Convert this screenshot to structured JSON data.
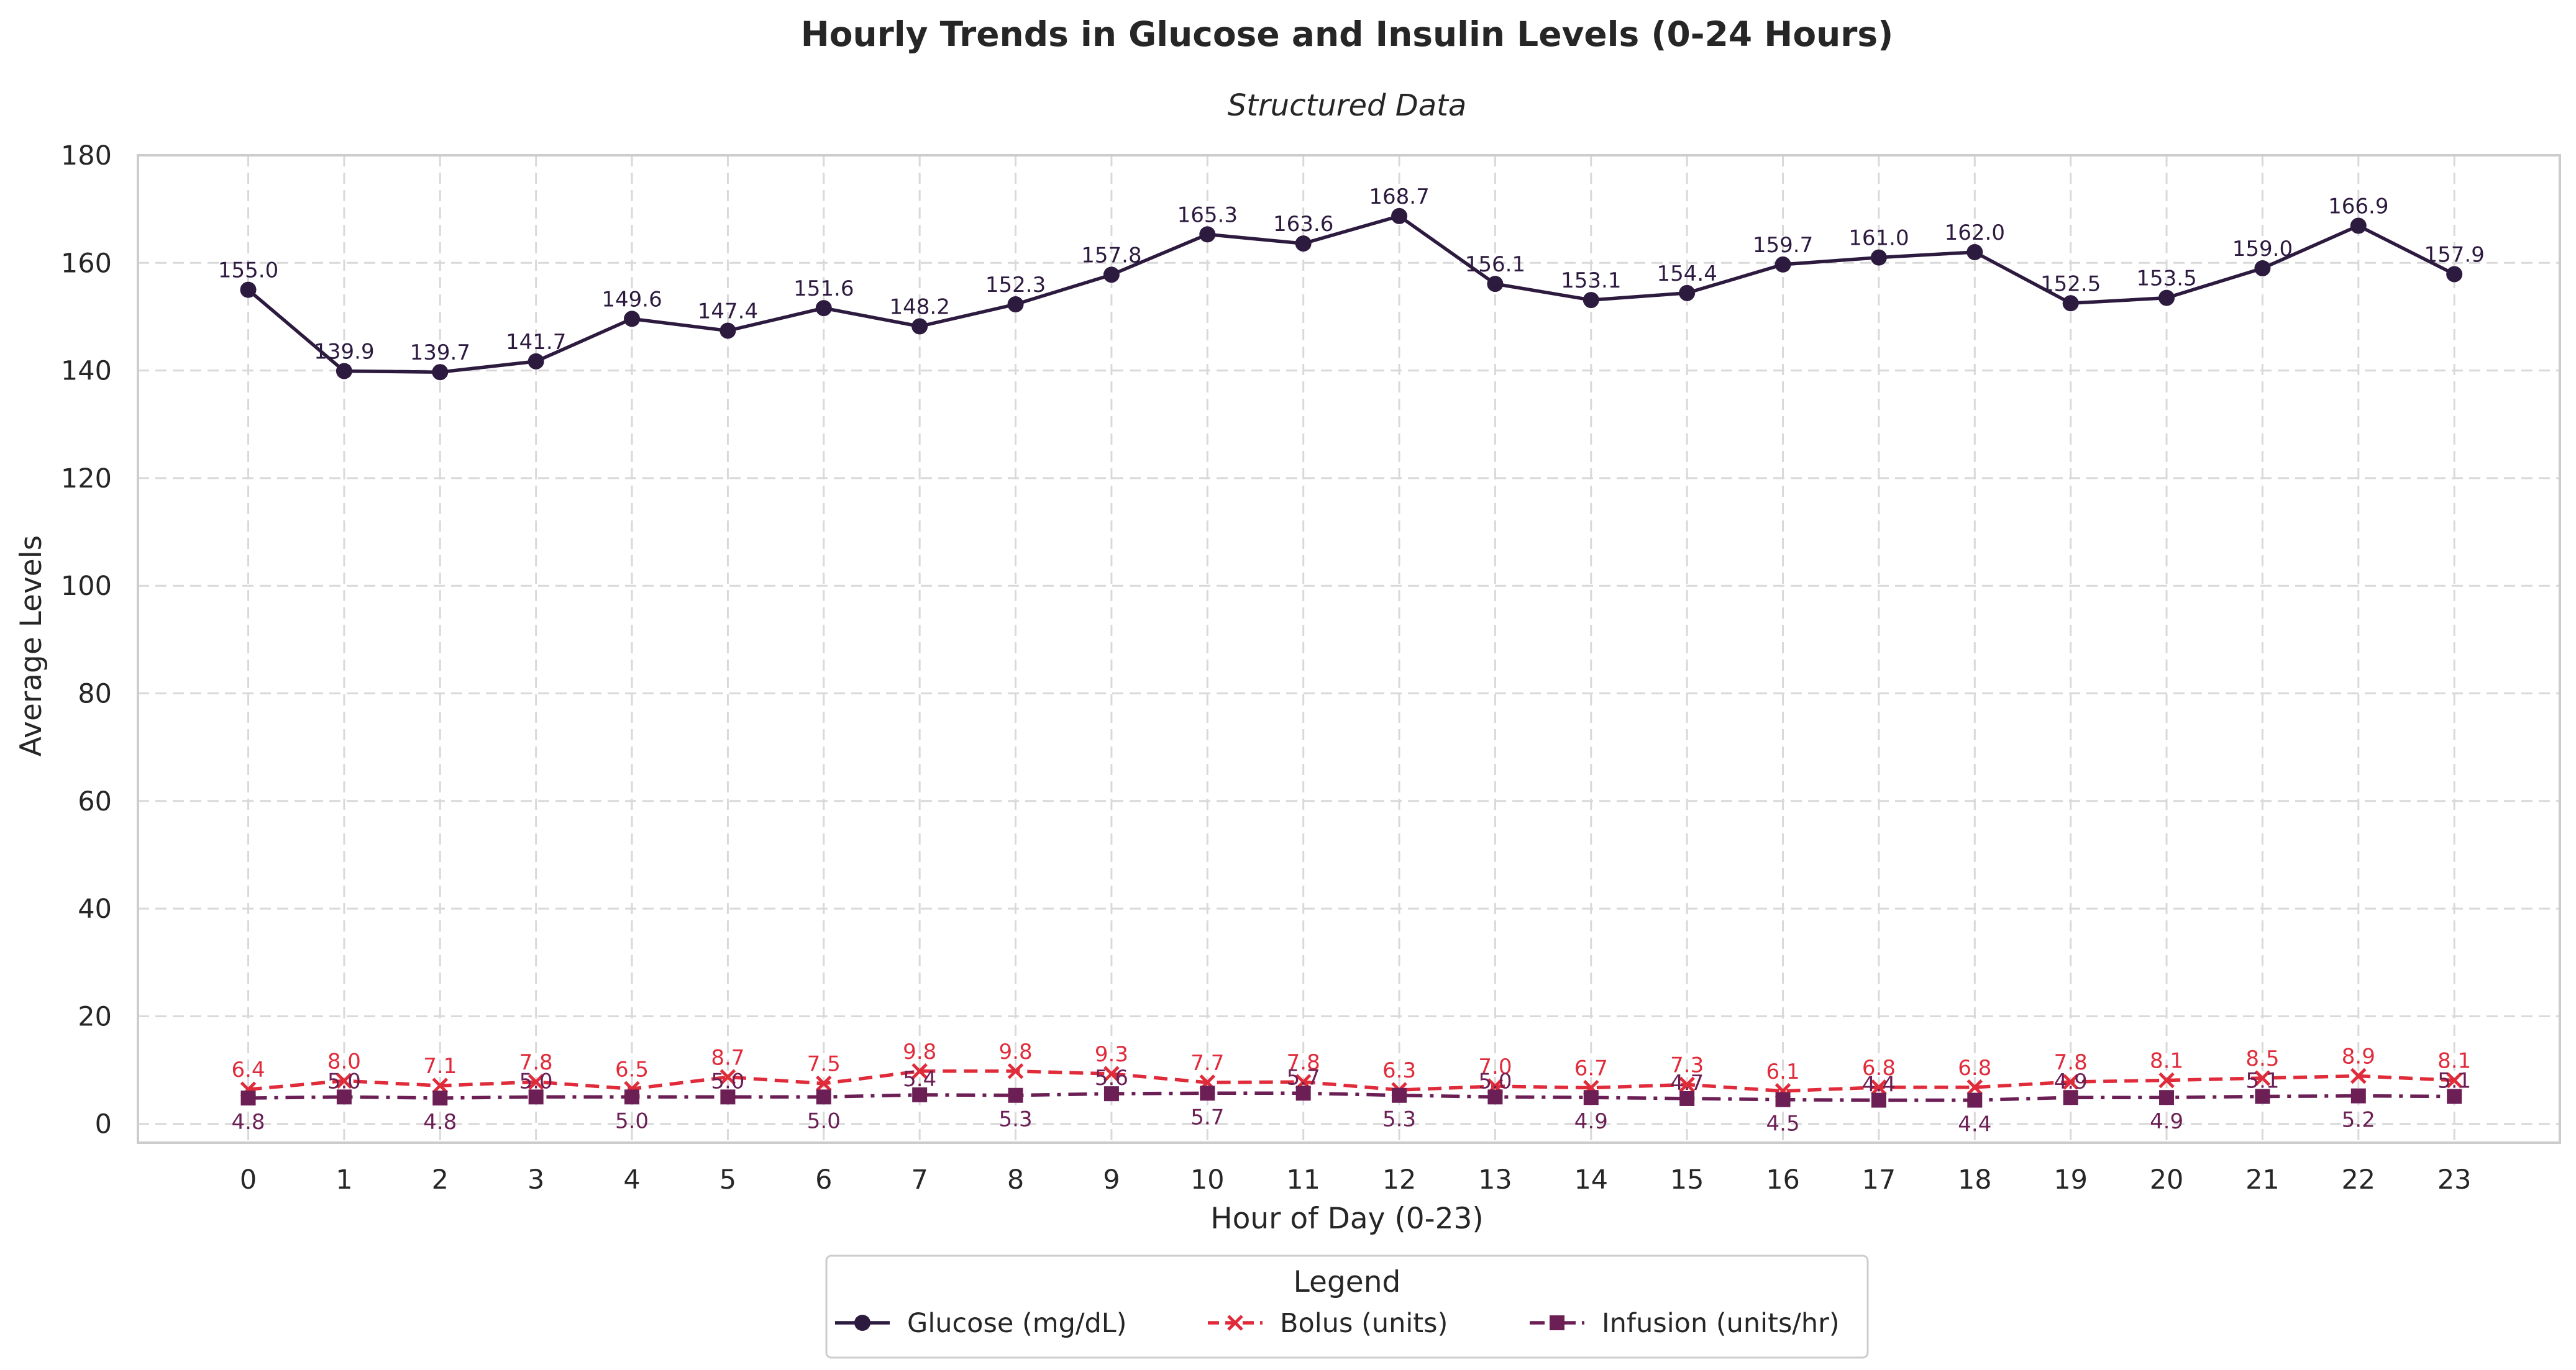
{
  "chart_data": {
    "type": "line",
    "title": "Hourly Trends in Glucose and Insulin Levels (0-24 Hours)",
    "subtitle": "Structured Data",
    "xlabel": "Hour of Day (0-23)",
    "ylabel": "Average Levels",
    "x": [
      0,
      1,
      2,
      3,
      4,
      5,
      6,
      7,
      8,
      9,
      10,
      11,
      12,
      13,
      14,
      15,
      16,
      17,
      18,
      19,
      20,
      21,
      22,
      23
    ],
    "x_tick_labels": [
      "0",
      "1",
      "2",
      "3",
      "4",
      "5",
      "6",
      "7",
      "8",
      "9",
      "10",
      "11",
      "12",
      "13",
      "14",
      "15",
      "16",
      "17",
      "18",
      "19",
      "20",
      "21",
      "22",
      "23"
    ],
    "ylim": [
      0,
      180
    ],
    "y_ticks": [
      0,
      20,
      40,
      60,
      80,
      100,
      120,
      140,
      160,
      180
    ],
    "y_tick_labels": [
      "0",
      "20",
      "40",
      "60",
      "80",
      "100",
      "120",
      "140",
      "160",
      "180"
    ],
    "grid": true,
    "legend": {
      "title": "Legend",
      "placement": "bottom-center"
    },
    "series": [
      {
        "name": "Glucose (mg/dL)",
        "color": "#2d1a3f",
        "marker": "circle",
        "line_style": "solid",
        "label_position": "above",
        "values": [
          155.0,
          139.9,
          139.7,
          141.7,
          149.6,
          147.4,
          151.6,
          148.2,
          152.3,
          157.8,
          165.3,
          163.6,
          168.7,
          156.1,
          153.1,
          154.4,
          159.7,
          161.0,
          162.0,
          152.5,
          153.5,
          159.0,
          166.9,
          157.9
        ],
        "value_labels": [
          "155.0",
          "139.9",
          "139.7",
          "141.7",
          "149.6",
          "147.4",
          "151.6",
          "148.2",
          "152.3",
          "157.8",
          "165.3",
          "163.6",
          "168.7",
          "156.1",
          "153.1",
          "154.4",
          "159.7",
          "161.0",
          "162.0",
          "152.5",
          "153.5",
          "159.0",
          "166.9",
          "157.9"
        ]
      },
      {
        "name": "Bolus (units)",
        "color": "#e02b3a",
        "marker": "x",
        "line_style": "dashed",
        "label_position": "above",
        "values": [
          6.4,
          8.0,
          7.1,
          7.8,
          6.5,
          8.7,
          7.5,
          9.8,
          9.8,
          9.3,
          7.7,
          7.8,
          6.3,
          7.0,
          6.7,
          7.3,
          6.1,
          6.8,
          6.8,
          7.8,
          8.1,
          8.5,
          8.9,
          8.1
        ],
        "value_labels": [
          "6.4",
          "8.0",
          "7.1",
          "7.8",
          "6.5",
          "8.7",
          "7.5",
          "9.8",
          "9.8",
          "9.3",
          "7.7",
          "7.8",
          "6.3",
          "7.0",
          "6.7",
          "7.3",
          "6.1",
          "6.8",
          "6.8",
          "7.8",
          "8.1",
          "8.5",
          "8.9",
          "8.1"
        ]
      },
      {
        "name": "Infusion (units/hr)",
        "color": "#6b1f55",
        "marker": "square",
        "line_style": "dashdot",
        "label_position": "alternating",
        "values": [
          4.8,
          5.0,
          4.8,
          5.0,
          5.0,
          5.0,
          5.0,
          5.4,
          5.3,
          5.6,
          5.7,
          5.7,
          5.3,
          5.0,
          4.9,
          4.7,
          4.5,
          4.4,
          4.4,
          4.9,
          4.9,
          5.1,
          5.2,
          5.1
        ],
        "value_labels": [
          "4.8",
          "5.0",
          "4.8",
          "5.0",
          "5.0",
          "5.0",
          "5.0",
          "5.4",
          "5.3",
          "5.6",
          "5.7",
          "5.7",
          "5.3",
          "5.0",
          "4.9",
          "4.7",
          "4.5",
          "4.4",
          "4.4",
          "4.9",
          "4.9",
          "5.1",
          "5.2",
          "5.1"
        ]
      }
    ]
  }
}
